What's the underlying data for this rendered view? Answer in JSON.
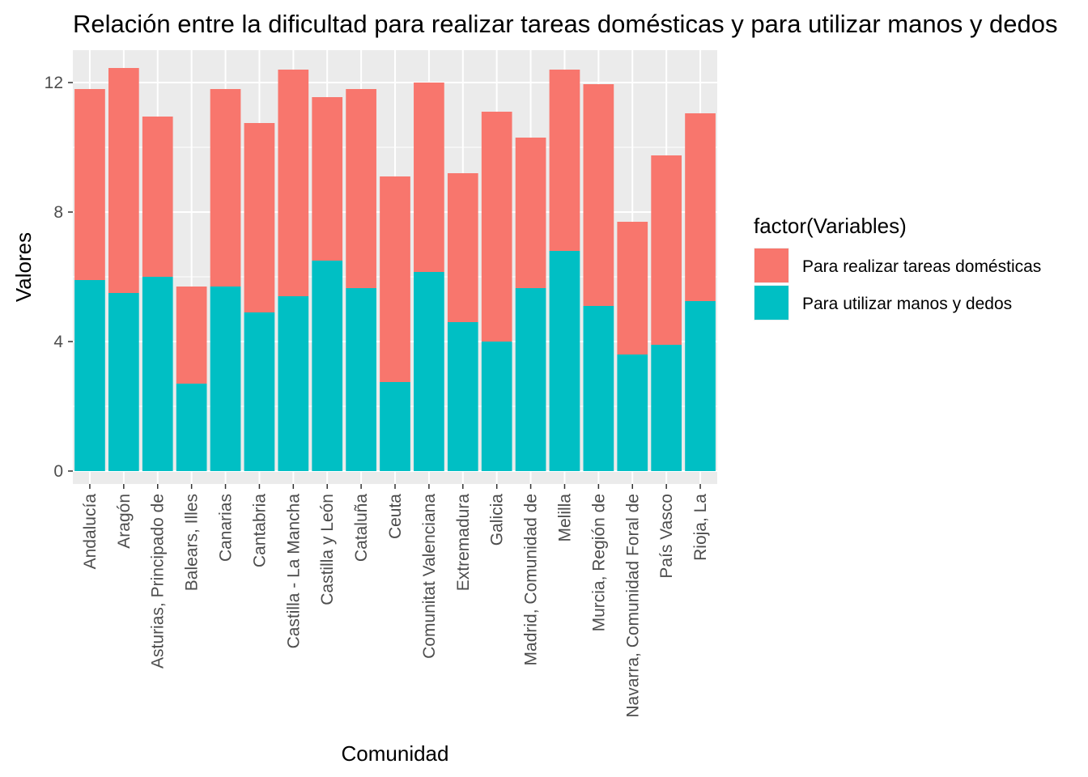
{
  "chart_data": {
    "type": "bar",
    "stacked": true,
    "title": "Relación entre la dificultad para realizar tareas domésticas y para utilizar manos y dedos",
    "xlabel": "Comunidad",
    "ylabel": "Valores",
    "ylim": [
      -0.4,
      13.0
    ],
    "yticks": [
      0,
      4,
      8,
      12
    ],
    "grid": true,
    "legend": {
      "title": "factor(Variables)",
      "position": "right"
    },
    "categories": [
      "Andalucía",
      "Aragón",
      "Asturias, Principado de",
      "Balears, Illes",
      "Canarias",
      "Cantabria",
      "Castilla - La Mancha",
      "Castilla y León",
      "Cataluña",
      "Ceuta",
      "Comunitat Valenciana",
      "Extremadura",
      "Galicia",
      "Madrid, Comunidad de",
      "Melilla",
      "Murcia, Región de",
      "Navarra, Comunidad Foral de",
      "País Vasco",
      "Rioja, La"
    ],
    "series": [
      {
        "name": "Para utilizar manos y dedos",
        "color": "#00BFC4",
        "values": [
          5.9,
          5.5,
          6.0,
          2.7,
          5.7,
          4.9,
          5.4,
          6.5,
          5.65,
          2.75,
          6.15,
          4.6,
          4.0,
          5.65,
          6.8,
          5.1,
          3.6,
          3.9,
          5.25
        ]
      },
      {
        "name": "Para realizar tareas domésticas",
        "color": "#F8766D",
        "values": [
          5.9,
          6.95,
          4.95,
          3.0,
          6.1,
          5.85,
          7.0,
          5.05,
          6.15,
          6.35,
          5.85,
          4.6,
          7.1,
          4.65,
          5.6,
          6.85,
          4.1,
          5.85,
          5.8
        ]
      }
    ],
    "legend_order": [
      "Para realizar tareas domésticas",
      "Para utilizar manos y dedos"
    ]
  }
}
